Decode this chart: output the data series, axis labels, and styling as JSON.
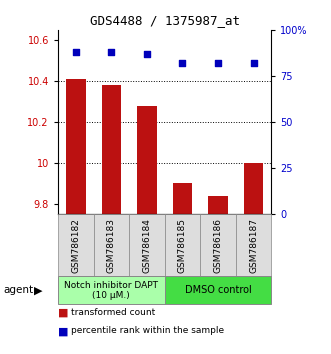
{
  "title": "GDS4488 / 1375987_at",
  "categories": [
    "GSM786182",
    "GSM786183",
    "GSM786184",
    "GSM786185",
    "GSM786186",
    "GSM786187"
  ],
  "bar_values": [
    10.41,
    10.38,
    10.28,
    9.9,
    9.84,
    10.0
  ],
  "dot_values": [
    88,
    88,
    87,
    82,
    82,
    82
  ],
  "ylim_left": [
    9.75,
    10.65
  ],
  "ylim_right": [
    0,
    100
  ],
  "yticks_left": [
    9.8,
    10.0,
    10.2,
    10.4,
    10.6
  ],
  "ytick_labels_left": [
    "9.8",
    "10",
    "10.2",
    "10.4",
    "10.6"
  ],
  "yticks_right": [
    0,
    25,
    50,
    75,
    100
  ],
  "ytick_labels_right": [
    "0",
    "25",
    "50",
    "75",
    "100%"
  ],
  "bar_color": "#BB1111",
  "dot_color": "#0000BB",
  "gridline_values": [
    10.0,
    10.2,
    10.4
  ],
  "group1_label": "Notch inhibitor DAPT\n(10 μM.)",
  "group2_label": "DMSO control",
  "group1_color": "#AAFFAA",
  "group2_color": "#44DD44",
  "agent_label": "agent",
  "legend_bar_label": "transformed count",
  "legend_dot_label": "percentile rank within the sample",
  "left_tick_color": "#CC0000",
  "right_tick_color": "#0000CC"
}
